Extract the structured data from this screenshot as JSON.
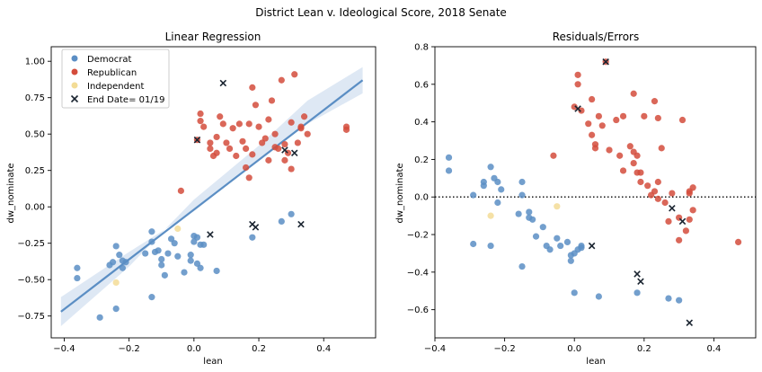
{
  "suptitle": "District Lean v. Ideological Score, 2018 Senate",
  "colors": {
    "democrat": "#5b8ec4",
    "republican": "#d44c3c",
    "independent": "#f3dc96",
    "end_date": "#1a2430",
    "fit_line": "#5b8ec4",
    "ci_band": "#c8d8ec"
  },
  "chart_data": [
    {
      "type": "scatter",
      "title": "Linear Regression",
      "xlabel": "lean",
      "ylabel": "dw_nominate",
      "xlim": [
        -0.44,
        0.56
      ],
      "ylim": [
        -0.9,
        1.1
      ],
      "xticks": [
        -0.4,
        -0.2,
        0.0,
        0.2,
        0.4
      ],
      "xtick_labels": [
        "−0.4",
        "−0.2",
        "0.0",
        "0.2",
        "0.4"
      ],
      "yticks": [
        -0.75,
        -0.5,
        -0.25,
        0.0,
        0.25,
        0.5,
        0.75,
        1.0
      ],
      "ytick_labels": [
        "−0.75",
        "−0.50",
        "−0.25",
        "0.00",
        "0.25",
        "0.50",
        "0.75",
        "1.00"
      ],
      "legend": {
        "placement": "upper-left",
        "entries": [
          "Democrat",
          "Republican",
          "Independent",
          "End Date= 01/19"
        ]
      },
      "regression": {
        "x": [
          -0.41,
          0.52
        ],
        "y": [
          -0.72,
          0.87
        ],
        "band": [
          [
            -0.41,
            -0.62,
            -0.82
          ],
          [
            -0.2,
            -0.31,
            -0.41
          ],
          [
            0.0,
            -0.03,
            0.05
          ],
          [
            0.2,
            0.32,
            0.42
          ],
          [
            0.35,
            0.57,
            0.73
          ],
          [
            0.52,
            0.78,
            0.96
          ]
        ]
      },
      "series": [
        {
          "name": "Democrat",
          "points": [
            [
              -0.36,
              -0.42
            ],
            [
              -0.36,
              -0.49
            ],
            [
              -0.29,
              -0.76
            ],
            [
              -0.26,
              -0.4
            ],
            [
              -0.25,
              -0.38
            ],
            [
              -0.24,
              -0.27
            ],
            [
              -0.23,
              -0.33
            ],
            [
              -0.22,
              -0.37
            ],
            [
              -0.22,
              -0.42
            ],
            [
              -0.21,
              -0.38
            ],
            [
              -0.24,
              -0.7
            ],
            [
              -0.15,
              -0.32
            ],
            [
              -0.13,
              -0.17
            ],
            [
              -0.13,
              -0.24
            ],
            [
              -0.12,
              -0.31
            ],
            [
              -0.11,
              -0.3
            ],
            [
              -0.1,
              -0.36
            ],
            [
              -0.1,
              -0.4
            ],
            [
              -0.09,
              -0.47
            ],
            [
              -0.08,
              -0.32
            ],
            [
              -0.07,
              -0.22
            ],
            [
              -0.06,
              -0.25
            ],
            [
              -0.05,
              -0.34
            ],
            [
              -0.03,
              -0.45
            ],
            [
              0.0,
              -0.2
            ],
            [
              0.0,
              -0.24
            ],
            [
              -0.01,
              -0.33
            ],
            [
              0.01,
              -0.21
            ],
            [
              0.02,
              -0.26
            ],
            [
              -0.01,
              -0.37
            ],
            [
              0.03,
              -0.26
            ],
            [
              0.01,
              -0.39
            ],
            [
              0.02,
              -0.42
            ],
            [
              0.07,
              -0.44
            ],
            [
              -0.13,
              -0.62
            ],
            [
              0.18,
              -0.21
            ],
            [
              0.27,
              -0.1
            ],
            [
              0.3,
              -0.05
            ]
          ]
        },
        {
          "name": "Republican",
          "points": [
            [
              -0.04,
              0.11
            ],
            [
              0.01,
              0.46
            ],
            [
              0.02,
              0.64
            ],
            [
              0.02,
              0.59
            ],
            [
              0.03,
              0.55
            ],
            [
              0.05,
              0.44
            ],
            [
              0.05,
              0.4
            ],
            [
              0.06,
              0.35
            ],
            [
              0.07,
              0.48
            ],
            [
              0.07,
              0.37
            ],
            [
              0.08,
              0.62
            ],
            [
              0.09,
              0.57
            ],
            [
              0.1,
              0.44
            ],
            [
              0.11,
              0.4
            ],
            [
              0.12,
              0.54
            ],
            [
              0.13,
              0.35
            ],
            [
              0.14,
              0.57
            ],
            [
              0.15,
              0.45
            ],
            [
              0.16,
              0.27
            ],
            [
              0.16,
              0.4
            ],
            [
              0.17,
              0.2
            ],
            [
              0.17,
              0.57
            ],
            [
              0.18,
              0.36
            ],
            [
              0.18,
              0.82
            ],
            [
              0.19,
              0.7
            ],
            [
              0.2,
              0.55
            ],
            [
              0.21,
              0.44
            ],
            [
              0.22,
              0.47
            ],
            [
              0.23,
              0.32
            ],
            [
              0.23,
              0.6
            ],
            [
              0.24,
              0.73
            ],
            [
              0.25,
              0.41
            ],
            [
              0.25,
              0.5
            ],
            [
              0.26,
              0.4
            ],
            [
              0.27,
              0.87
            ],
            [
              0.28,
              0.32
            ],
            [
              0.28,
              0.43
            ],
            [
              0.29,
              0.37
            ],
            [
              0.3,
              0.26
            ],
            [
              0.3,
              0.58
            ],
            [
              0.31,
              0.91
            ],
            [
              0.32,
              0.44
            ],
            [
              0.33,
              0.54
            ],
            [
              0.34,
              0.62
            ],
            [
              0.35,
              0.5
            ],
            [
              0.33,
              0.55
            ],
            [
              0.47,
              0.55
            ],
            [
              0.47,
              0.53
            ]
          ]
        },
        {
          "name": "Independent",
          "points": [
            [
              -0.24,
              -0.52
            ],
            [
              -0.05,
              -0.15
            ]
          ]
        },
        {
          "name": "End Date= 01/19",
          "points": [
            [
              0.01,
              0.46
            ],
            [
              0.09,
              0.85
            ],
            [
              0.28,
              0.39
            ],
            [
              0.31,
              0.37
            ],
            [
              0.05,
              -0.19
            ],
            [
              0.18,
              -0.12
            ],
            [
              0.19,
              -0.14
            ],
            [
              0.33,
              -0.12
            ]
          ]
        }
      ]
    },
    {
      "type": "scatter",
      "title": "Residuals/Errors",
      "xlabel": "lean",
      "ylabel": "dw_nominate",
      "xlim": [
        -0.4,
        0.52
      ],
      "ylim": [
        -0.75,
        0.8
      ],
      "xticks": [
        -0.4,
        -0.2,
        0.0,
        0.2,
        0.4
      ],
      "xtick_labels": [
        "−0.4",
        "−0.2",
        "0.0",
        "0.2",
        "0.4"
      ],
      "yticks": [
        -0.6,
        -0.4,
        -0.2,
        0.0,
        0.2,
        0.4,
        0.6,
        0.8
      ],
      "ytick_labels": [
        "−0.6",
        "−0.4",
        "−0.2",
        "0.0",
        "0.2",
        "0.4",
        "0.6",
        "0.8"
      ],
      "reference_line_y": 0.0,
      "series": [
        {
          "name": "Democrat",
          "points": [
            [
              -0.36,
              0.21
            ],
            [
              -0.36,
              0.14
            ],
            [
              -0.29,
              0.01
            ],
            [
              -0.29,
              -0.25
            ],
            [
              -0.26,
              0.08
            ],
            [
              -0.26,
              0.06
            ],
            [
              -0.24,
              0.16
            ],
            [
              -0.23,
              0.1
            ],
            [
              -0.22,
              0.08
            ],
            [
              -0.21,
              0.04
            ],
            [
              -0.22,
              -0.03
            ],
            [
              -0.24,
              -0.26
            ],
            [
              -0.15,
              0.08
            ],
            [
              -0.15,
              0.01
            ],
            [
              -0.13,
              -0.08
            ],
            [
              -0.13,
              -0.11
            ],
            [
              -0.12,
              -0.12
            ],
            [
              -0.11,
              -0.21
            ],
            [
              -0.09,
              -0.16
            ],
            [
              -0.08,
              -0.26
            ],
            [
              -0.07,
              -0.28
            ],
            [
              -0.05,
              -0.22
            ],
            [
              -0.04,
              -0.26
            ],
            [
              -0.02,
              -0.24
            ],
            [
              -0.01,
              -0.31
            ],
            [
              -0.01,
              -0.34
            ],
            [
              0.01,
              -0.28
            ],
            [
              0.0,
              -0.3
            ],
            [
              0.02,
              -0.27
            ],
            [
              0.02,
              -0.26
            ],
            [
              0.0,
              -0.51
            ],
            [
              0.07,
              -0.53
            ],
            [
              -0.15,
              -0.37
            ],
            [
              -0.16,
              -0.09
            ],
            [
              0.18,
              -0.51
            ],
            [
              0.27,
              -0.54
            ],
            [
              0.3,
              -0.55
            ]
          ]
        },
        {
          "name": "Republican",
          "points": [
            [
              -0.06,
              0.22
            ],
            [
              0.0,
              0.48
            ],
            [
              0.01,
              0.65
            ],
            [
              0.01,
              0.6
            ],
            [
              0.02,
              0.46
            ],
            [
              0.04,
              0.39
            ],
            [
              0.05,
              0.52
            ],
            [
              0.05,
              0.33
            ],
            [
              0.06,
              0.28
            ],
            [
              0.06,
              0.26
            ],
            [
              0.07,
              0.43
            ],
            [
              0.08,
              0.38
            ],
            [
              0.09,
              0.72
            ],
            [
              0.1,
              0.25
            ],
            [
              0.12,
              0.41
            ],
            [
              0.13,
              0.22
            ],
            [
              0.14,
              0.14
            ],
            [
              0.14,
              0.43
            ],
            [
              0.16,
              0.27
            ],
            [
              0.17,
              0.55
            ],
            [
              0.17,
              0.24
            ],
            [
              0.17,
              0.18
            ],
            [
              0.18,
              0.13
            ],
            [
              0.18,
              0.22
            ],
            [
              0.19,
              0.08
            ],
            [
              0.19,
              0.13
            ],
            [
              0.2,
              0.43
            ],
            [
              0.21,
              0.06
            ],
            [
              0.22,
              0.01
            ],
            [
              0.23,
              0.03
            ],
            [
              0.23,
              0.51
            ],
            [
              0.24,
              0.08
            ],
            [
              0.24,
              0.42
            ],
            [
              0.24,
              -0.01
            ],
            [
              0.25,
              0.26
            ],
            [
              0.26,
              -0.03
            ],
            [
              0.27,
              -0.13
            ],
            [
              0.28,
              0.02
            ],
            [
              0.3,
              -0.23
            ],
            [
              0.3,
              -0.11
            ],
            [
              0.31,
              0.41
            ],
            [
              0.32,
              -0.18
            ],
            [
              0.33,
              0.02
            ],
            [
              0.33,
              -0.12
            ],
            [
              0.33,
              0.03
            ],
            [
              0.34,
              0.05
            ],
            [
              0.34,
              -0.07
            ],
            [
              0.47,
              -0.24
            ]
          ]
        },
        {
          "name": "Independent",
          "points": [
            [
              -0.24,
              -0.1
            ],
            [
              -0.05,
              -0.05
            ]
          ]
        },
        {
          "name": "End Date= 01/19",
          "points": [
            [
              0.01,
              0.47
            ],
            [
              0.09,
              0.72
            ],
            [
              0.28,
              -0.06
            ],
            [
              0.31,
              -0.13
            ],
            [
              0.05,
              -0.26
            ],
            [
              0.18,
              -0.41
            ],
            [
              0.19,
              -0.45
            ],
            [
              0.33,
              -0.67
            ]
          ]
        }
      ]
    }
  ]
}
